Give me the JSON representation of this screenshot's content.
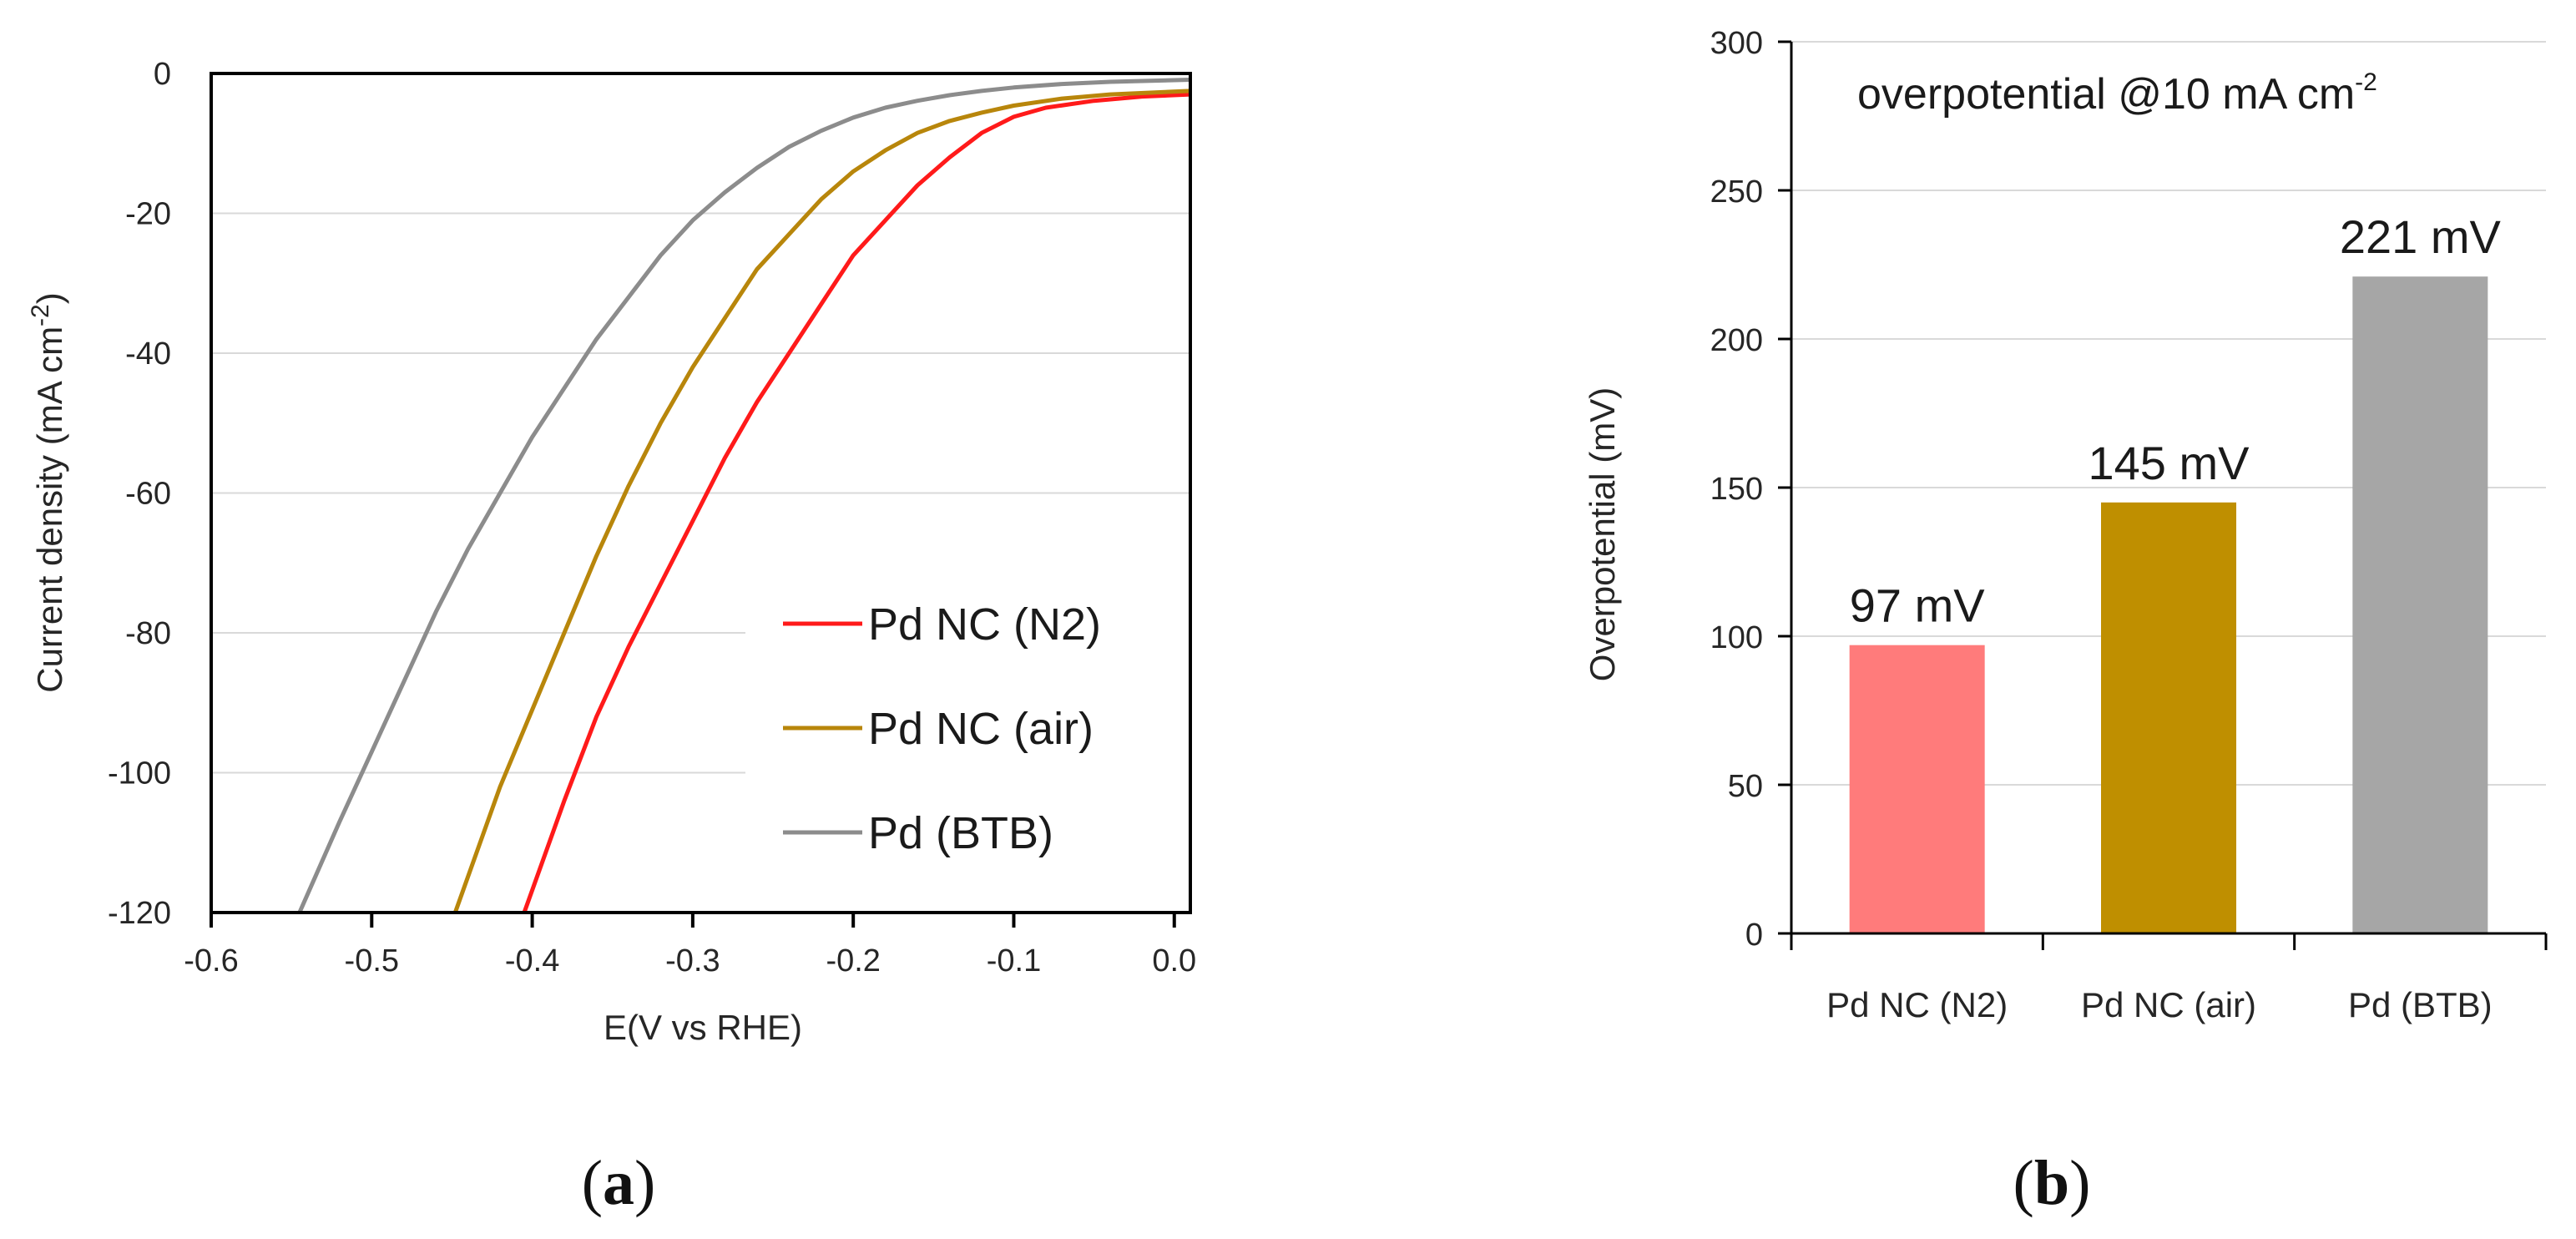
{
  "chart_data": [
    {
      "type": "line",
      "panel_label": {
        "open": "(",
        "letter": "a",
        "close": ")"
      },
      "title": "",
      "xlabel": "E(V vs RHE)",
      "ylabel": {
        "text": "Current density (mA cm",
        "sup": "-2",
        "tail": ")"
      },
      "xlim": [
        -0.6,
        0.01
      ],
      "ylim": [
        -120,
        0
      ],
      "xticks": [
        -0.6,
        -0.5,
        -0.4,
        -0.3,
        -0.2,
        -0.1,
        0.0
      ],
      "xtick_labels": [
        "-0.6",
        "-0.5",
        "-0.4",
        "-0.3",
        "-0.2",
        "-0.1",
        "0.0"
      ],
      "yticks": [
        0,
        -20,
        -40,
        -60,
        -80,
        -100,
        -120
      ],
      "ytick_labels": [
        "0",
        "-20",
        "-40",
        "-60",
        "-80",
        "-100",
        "-120"
      ],
      "grid": true,
      "legend": "bottom-right",
      "series": [
        {
          "name": "Pd NC (N2)",
          "color": "#ff1a1a",
          "x": [
            -0.405,
            -0.38,
            -0.36,
            -0.34,
            -0.32,
            -0.3,
            -0.28,
            -0.26,
            -0.24,
            -0.22,
            -0.2,
            -0.18,
            -0.16,
            -0.14,
            -0.12,
            -0.1,
            -0.08,
            -0.05,
            -0.02,
            0.01
          ],
          "y": [
            -120,
            -104,
            -92,
            -82,
            -73,
            -64,
            -55,
            -47,
            -40,
            -33,
            -26,
            -21,
            -16,
            -12,
            -8.5,
            -6.2,
            -4.9,
            -3.9,
            -3.3,
            -3.0
          ]
        },
        {
          "name": "Pd NC (air)",
          "color": "#b8860b",
          "x": [
            -0.448,
            -0.42,
            -0.4,
            -0.38,
            -0.36,
            -0.34,
            -0.32,
            -0.3,
            -0.28,
            -0.26,
            -0.24,
            -0.22,
            -0.2,
            -0.18,
            -0.16,
            -0.14,
            -0.12,
            -0.1,
            -0.07,
            -0.04,
            0.01
          ],
          "y": [
            -120,
            -102,
            -91,
            -80,
            -69,
            -59,
            -50,
            -42,
            -35,
            -28,
            -23,
            -18,
            -14,
            -11,
            -8.5,
            -6.8,
            -5.6,
            -4.6,
            -3.6,
            -3.0,
            -2.5
          ]
        },
        {
          "name": "Pd (BTB)",
          "color": "#8c8c8c",
          "x": [
            -0.545,
            -0.52,
            -0.5,
            -0.48,
            -0.46,
            -0.44,
            -0.42,
            -0.4,
            -0.38,
            -0.36,
            -0.34,
            -0.32,
            -0.3,
            -0.28,
            -0.26,
            -0.24,
            -0.22,
            -0.2,
            -0.18,
            -0.16,
            -0.14,
            -0.12,
            -0.1,
            -0.07,
            -0.04,
            0.01
          ],
          "y": [
            -120,
            -107,
            -97,
            -87,
            -77,
            -68,
            -60,
            -52,
            -45,
            -38,
            -32,
            -26,
            -21,
            -17,
            -13.5,
            -10.5,
            -8.2,
            -6.3,
            -4.9,
            -3.9,
            -3.1,
            -2.5,
            -2.0,
            -1.5,
            -1.2,
            -0.9
          ]
        }
      ]
    },
    {
      "type": "bar",
      "panel_label": {
        "open": "(",
        "letter": "b",
        "close": ")"
      },
      "title": {
        "text": "overpotential @10 mA cm",
        "sup": "-2"
      },
      "xlabel": "",
      "ylabel": "Overpotential (mV)",
      "ylim": [
        0,
        300
      ],
      "yticks": [
        0,
        50,
        100,
        150,
        200,
        250,
        300
      ],
      "ytick_labels": [
        "0",
        "50",
        "100",
        "150",
        "200",
        "250",
        "300"
      ],
      "grid": true,
      "categories": [
        "Pd NC (N2)",
        "Pd NC (air)",
        "Pd (BTB)"
      ],
      "values": [
        97,
        145,
        221
      ],
      "data_labels": [
        "97 mV",
        "145 mV",
        "221 mV"
      ],
      "colors": [
        "#ff7b7b",
        "#bf8f00",
        "#a6a6a6"
      ]
    }
  ]
}
